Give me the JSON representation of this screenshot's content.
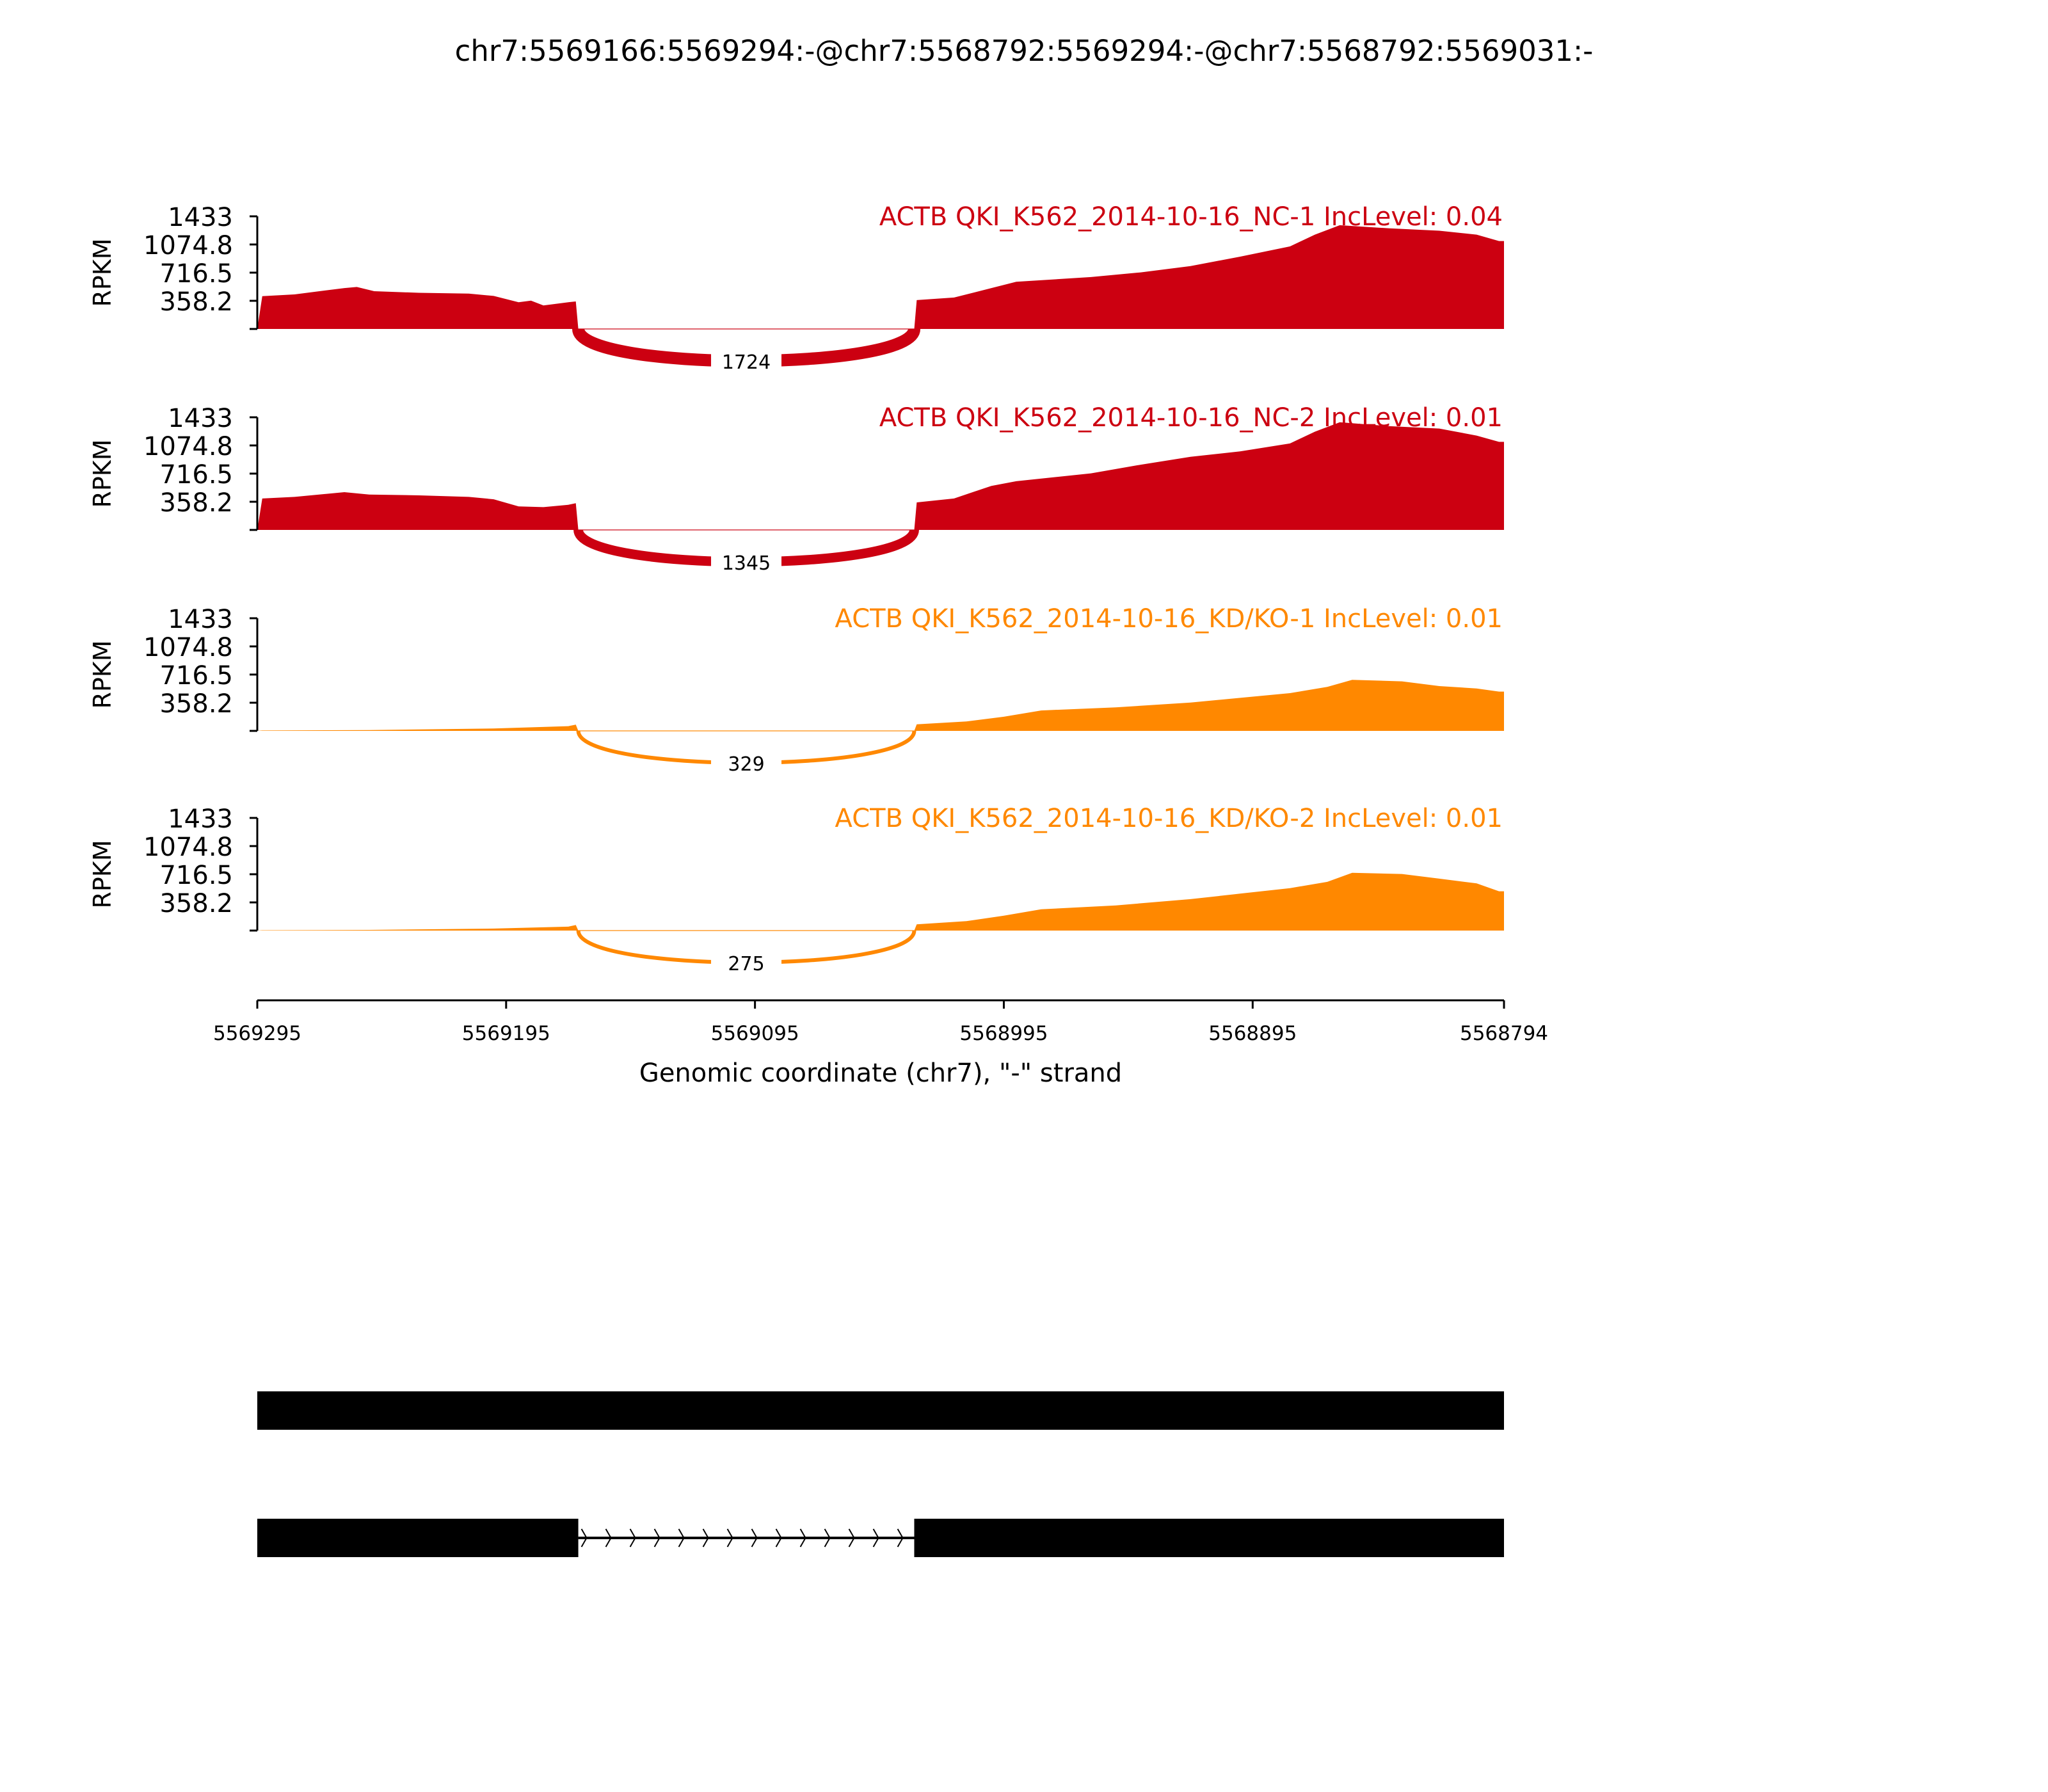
{
  "chart_data": {
    "type": "area",
    "title": "chr7:5569166:5569294:-@chr7:5568792:5569294:-@chr7:5568792:5569031:-",
    "xlabel": "Genomic coordinate (chr7), \"-\" strand",
    "ylabel": "RPKM",
    "xlim": [
      5569295,
      5568794
    ],
    "x_ticks": [
      "5569295",
      "5569195",
      "5569095",
      "5568995",
      "5568895",
      "5568794"
    ],
    "x_tick_values": [
      5569295,
      5569195,
      5569095,
      5568995,
      5568895,
      5568794
    ],
    "ylim": [
      0,
      1433
    ],
    "y_ticks": [
      "358.2",
      "716.5",
      "1074.8",
      "1433"
    ],
    "y_tick_values": [
      358.2,
      716.5,
      1074.8,
      1433
    ],
    "junction": {
      "start": 5569166,
      "end": 5569031
    },
    "panels": [
      {
        "label": "ACTB QKI_K562_2014-10-16_NC-1 IncLevel: 0.04",
        "color": "#cc0011",
        "junction_count": "1724",
        "coverage": [
          [
            5569295,
            0
          ],
          [
            5569293,
            418
          ],
          [
            5569280,
            440
          ],
          [
            5569270,
            480
          ],
          [
            5569260,
            520
          ],
          [
            5569255,
            534
          ],
          [
            5569248,
            480
          ],
          [
            5569230,
            460
          ],
          [
            5569210,
            450
          ],
          [
            5569200,
            420
          ],
          [
            5569190,
            340
          ],
          [
            5569185,
            360
          ],
          [
            5569180,
            300
          ],
          [
            5569175,
            320
          ],
          [
            5569170,
            340
          ],
          [
            5569167,
            350
          ],
          [
            5569166,
            0
          ],
          [
            5569031,
            0
          ],
          [
            5569030,
            367
          ],
          [
            5569015,
            400
          ],
          [
            5569000,
            520
          ],
          [
            5568990,
            600
          ],
          [
            5568960,
            660
          ],
          [
            5568940,
            720
          ],
          [
            5568920,
            800
          ],
          [
            5568900,
            920
          ],
          [
            5568880,
            1050
          ],
          [
            5568870,
            1200
          ],
          [
            5568860,
            1320
          ],
          [
            5568840,
            1280
          ],
          [
            5568820,
            1250
          ],
          [
            5568805,
            1200
          ],
          [
            5568796,
            1119
          ],
          [
            5568794,
            1119
          ]
        ]
      },
      {
        "label": "ACTB QKI_K562_2014-10-16_NC-2 IncLevel: 0.01",
        "color": "#cc0011",
        "junction_count": "1345",
        "coverage": [
          [
            5569295,
            0
          ],
          [
            5569293,
            400
          ],
          [
            5569280,
            420
          ],
          [
            5569260,
            480
          ],
          [
            5569250,
            450
          ],
          [
            5569230,
            440
          ],
          [
            5569210,
            420
          ],
          [
            5569200,
            390
          ],
          [
            5569190,
            300
          ],
          [
            5569180,
            290
          ],
          [
            5569170,
            320
          ],
          [
            5569167,
            340
          ],
          [
            5569166,
            0
          ],
          [
            5569031,
            0
          ],
          [
            5569030,
            350
          ],
          [
            5569015,
            400
          ],
          [
            5569000,
            560
          ],
          [
            5568990,
            620
          ],
          [
            5568960,
            720
          ],
          [
            5568940,
            830
          ],
          [
            5568920,
            930
          ],
          [
            5568900,
            1000
          ],
          [
            5568880,
            1100
          ],
          [
            5568870,
            1250
          ],
          [
            5568860,
            1370
          ],
          [
            5568840,
            1320
          ],
          [
            5568820,
            1290
          ],
          [
            5568805,
            1200
          ],
          [
            5568796,
            1120
          ],
          [
            5568794,
            1120
          ]
        ]
      },
      {
        "label": "ACTB QKI_K562_2014-10-16_KD/KO-1 IncLevel: 0.01",
        "color": "#ff8800",
        "junction_count": "329",
        "coverage": [
          [
            5569295,
            0
          ],
          [
            5569293,
            5
          ],
          [
            5569250,
            10
          ],
          [
            5569200,
            30
          ],
          [
            5569170,
            60
          ],
          [
            5569167,
            80
          ],
          [
            5569166,
            0
          ],
          [
            5569031,
            0
          ],
          [
            5569030,
            83
          ],
          [
            5569010,
            120
          ],
          [
            5568995,
            180
          ],
          [
            5568980,
            260
          ],
          [
            5568950,
            300
          ],
          [
            5568920,
            360
          ],
          [
            5568900,
            420
          ],
          [
            5568880,
            480
          ],
          [
            5568865,
            560
          ],
          [
            5568855,
            650
          ],
          [
            5568835,
            630
          ],
          [
            5568820,
            570
          ],
          [
            5568805,
            540
          ],
          [
            5568796,
            500
          ],
          [
            5568794,
            500
          ]
        ]
      },
      {
        "label": "ACTB QKI_K562_2014-10-16_KD/KO-2 IncLevel: 0.01",
        "color": "#ff8800",
        "junction_count": "275",
        "coverage": [
          [
            5569295,
            0
          ],
          [
            5569293,
            4
          ],
          [
            5569250,
            8
          ],
          [
            5569200,
            25
          ],
          [
            5569170,
            50
          ],
          [
            5569167,
            70
          ],
          [
            5569166,
            0
          ],
          [
            5569031,
            0
          ],
          [
            5569030,
            80
          ],
          [
            5569010,
            120
          ],
          [
            5568995,
            190
          ],
          [
            5568980,
            270
          ],
          [
            5568950,
            320
          ],
          [
            5568920,
            400
          ],
          [
            5568900,
            470
          ],
          [
            5568880,
            540
          ],
          [
            5568865,
            620
          ],
          [
            5568855,
            735
          ],
          [
            5568835,
            720
          ],
          [
            5568820,
            660
          ],
          [
            5568805,
            600
          ],
          [
            5568796,
            500
          ],
          [
            5568794,
            500
          ]
        ]
      }
    ],
    "transcripts": [
      {
        "exons": [
          [
            5569295,
            5568794
          ]
        ]
      },
      {
        "exons": [
          [
            5569295,
            5569166
          ],
          [
            5569031,
            5568794
          ]
        ],
        "strand_arrows": true
      }
    ]
  }
}
